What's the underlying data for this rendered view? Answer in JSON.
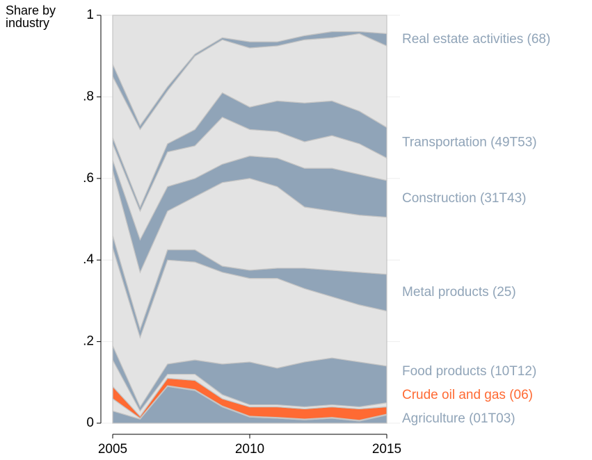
{
  "chart_data": {
    "type": "stacked-area",
    "ylabel": "Share by industry",
    "x": [
      2005,
      2006,
      2007,
      2008,
      2009,
      2010,
      2011,
      2012,
      2013,
      2014,
      2015
    ],
    "xlim": [
      2005,
      2015
    ],
    "xticks": [
      2005,
      2010,
      2015
    ],
    "ylim": [
      0,
      1
    ],
    "yticks": [
      0,
      {
        "value": 0.2,
        "label": ".2"
      },
      {
        "value": 0.4,
        "label": ".4"
      },
      {
        "value": 0.6,
        "label": ".6"
      },
      {
        "value": 0.8,
        "label": ".8"
      },
      1
    ],
    "grid": true,
    "series": [
      {
        "name": "Agriculture (01T03)",
        "color": "#90a4b8",
        "values": [
          0.03,
          0.01,
          0.09,
          0.08,
          0.04,
          0.015,
          0.012,
          0.008,
          0.012,
          0.005,
          0.02
        ]
      },
      {
        "color": "#e3e3e3",
        "values": [
          0.03,
          0.002,
          0.002,
          0.002,
          0.002,
          0.002,
          0.002,
          0.002,
          0.002,
          0.002,
          0.002
        ]
      },
      {
        "name": "Crude oil and gas (06)",
        "color": "#ff6a33",
        "values": [
          0.03,
          0.005,
          0.018,
          0.023,
          0.018,
          0.023,
          0.026,
          0.025,
          0.026,
          0.028,
          0.018
        ]
      },
      {
        "color": "#e3e3e3",
        "values": [
          0.065,
          0.013,
          0.01,
          0.015,
          0.01,
          0.005,
          0.005,
          0.005,
          0.005,
          0.005,
          0.01
        ]
      },
      {
        "name": "Food products (10T12)",
        "color": "#90a4b8",
        "values": [
          0.035,
          0.01,
          0.025,
          0.035,
          0.075,
          0.105,
          0.09,
          0.11,
          0.115,
          0.11,
          0.09
        ]
      },
      {
        "color": "#e3e3e3",
        "values": [
          0.24,
          0.17,
          0.255,
          0.24,
          0.225,
          0.205,
          0.22,
          0.18,
          0.15,
          0.14,
          0.135
        ]
      },
      {
        "name": "Metal products (25)",
        "color": "#90a4b8",
        "values": [
          0.03,
          0.02,
          0.025,
          0.03,
          0.015,
          0.02,
          0.025,
          0.05,
          0.065,
          0.08,
          0.09
        ]
      },
      {
        "color": "#e3e3e3",
        "values": [
          0.16,
          0.14,
          0.095,
          0.13,
          0.205,
          0.225,
          0.2,
          0.15,
          0.145,
          0.14,
          0.14
        ]
      },
      {
        "name": "Construction (31T43)",
        "color": "#90a4b8",
        "values": [
          0.025,
          0.08,
          0.06,
          0.045,
          0.045,
          0.055,
          0.07,
          0.095,
          0.105,
          0.1,
          0.09
        ]
      },
      {
        "color": "#e3e3e3",
        "values": [
          0.04,
          0.07,
          0.085,
          0.08,
          0.115,
          0.065,
          0.065,
          0.065,
          0.08,
          0.075,
          0.055
        ]
      },
      {
        "name": "Transportation (49T53)",
        "color": "#90a4b8",
        "values": [
          0.015,
          0.01,
          0.02,
          0.04,
          0.06,
          0.055,
          0.075,
          0.095,
          0.085,
          0.08,
          0.075
        ]
      },
      {
        "color": "#e3e3e3",
        "values": [
          0.15,
          0.19,
          0.13,
          0.18,
          0.13,
          0.145,
          0.135,
          0.155,
          0.155,
          0.19,
          0.2
        ]
      },
      {
        "name": "Real estate activities (68)",
        "color": "#90a4b8",
        "values": [
          0.03,
          0.01,
          0.01,
          0.005,
          0.005,
          0.015,
          0.01,
          0.01,
          0.015,
          0.005,
          0.03
        ]
      },
      {
        "color": "#e3e3e3",
        "values": [
          0.12,
          0.27,
          0.175,
          0.095,
          0.055,
          0.065,
          0.065,
          0.05,
          0.04,
          0.04,
          0.045
        ]
      }
    ]
  }
}
